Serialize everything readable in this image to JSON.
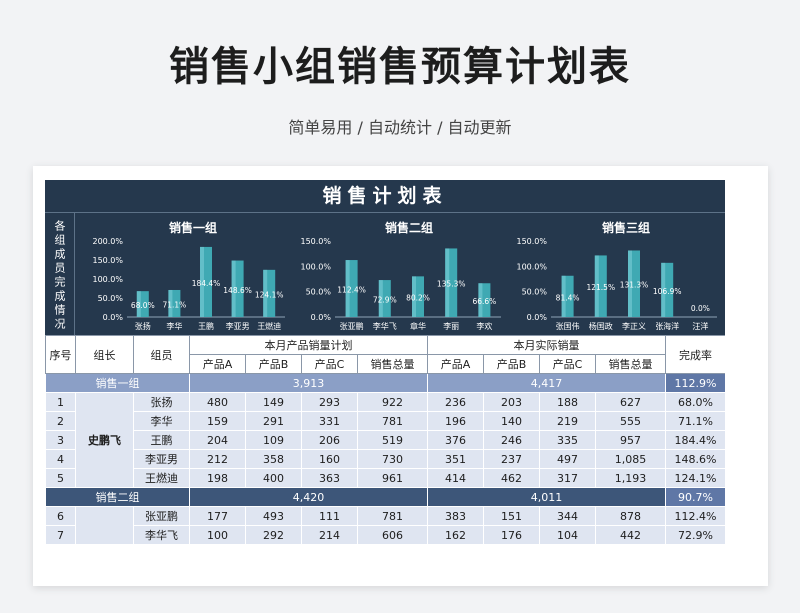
{
  "header": {
    "title": "销售小组销售预算计划表",
    "subtitle": "简单易用 / 自动统计 / 自动更新"
  },
  "sheet": {
    "title": "销售计划表",
    "side_label": "各组成员完成情况",
    "columns": {
      "index": "序号",
      "leader": "组长",
      "member": "组员",
      "plan_group": "本月产品销量计划",
      "actual_group": "本月实际销量",
      "rate": "完成率",
      "product_a": "产品A",
      "product_b": "产品B",
      "product_c": "产品C",
      "total": "销售总量"
    },
    "groups": [
      {
        "name": "销售一组",
        "leader": "史鹏飞",
        "plan_total": "3,913",
        "actual_total": "4,417",
        "rate": "112.9%",
        "rows": [
          {
            "idx": "1",
            "member": "张扬",
            "pa": "480",
            "pb": "149",
            "pc": "293",
            "pt": "922",
            "aa": "236",
            "ab": "203",
            "ac": "188",
            "at": "627",
            "rate": "68.0%"
          },
          {
            "idx": "2",
            "member": "李华",
            "pa": "159",
            "pb": "291",
            "pc": "331",
            "pt": "781",
            "aa": "196",
            "ab": "140",
            "ac": "219",
            "at": "555",
            "rate": "71.1%"
          },
          {
            "idx": "3",
            "member": "王鹏",
            "pa": "204",
            "pb": "109",
            "pc": "206",
            "pt": "519",
            "aa": "376",
            "ab": "246",
            "ac": "335",
            "at": "957",
            "rate": "184.4%"
          },
          {
            "idx": "4",
            "member": "李亚男",
            "pa": "212",
            "pb": "358",
            "pc": "160",
            "pt": "730",
            "aa": "351",
            "ab": "237",
            "ac": "497",
            "at": "1,085",
            "rate": "148.6%"
          },
          {
            "idx": "5",
            "member": "王燃迪",
            "pa": "198",
            "pb": "400",
            "pc": "363",
            "pt": "961",
            "aa": "414",
            "ab": "462",
            "ac": "317",
            "at": "1,193",
            "rate": "124.1%"
          }
        ]
      },
      {
        "name": "销售二组",
        "leader": "",
        "plan_total": "4,420",
        "actual_total": "4,011",
        "rate": "90.7%",
        "rows": [
          {
            "idx": "6",
            "member": "张亚鹏",
            "pa": "177",
            "pb": "493",
            "pc": "111",
            "pt": "781",
            "aa": "383",
            "ab": "151",
            "ac": "344",
            "at": "878",
            "rate": "112.4%"
          },
          {
            "idx": "7",
            "member": "李华飞",
            "pa": "100",
            "pb": "292",
            "pc": "214",
            "pt": "606",
            "aa": "162",
            "ab": "176",
            "ac": "104",
            "at": "442",
            "rate": "72.9%"
          }
        ]
      }
    ]
  },
  "chart_data": [
    {
      "type": "bar",
      "title": "销售一组",
      "categories": [
        "张扬",
        "李华",
        "王鹏",
        "李亚男",
        "王燃迪"
      ],
      "values": [
        68.0,
        71.1,
        184.4,
        148.6,
        124.1
      ],
      "value_labels": [
        "68.0%",
        "71.1%",
        "184.4%",
        "148.6%",
        "124.1%"
      ],
      "ylim": [
        0,
        200
      ],
      "yticks": [
        "200.0%",
        "150.0%",
        "100.0%",
        "50.0%",
        "0.0%"
      ],
      "color": "#3fa9b3"
    },
    {
      "type": "bar",
      "title": "销售二组",
      "categories": [
        "张亚鹏",
        "李华飞",
        "章华",
        "李丽",
        "李欢"
      ],
      "values": [
        112.4,
        72.9,
        80.2,
        135.3,
        66.6
      ],
      "value_labels": [
        "112.4%",
        "72.9%",
        "80.2%",
        "135.3%",
        "66.6%"
      ],
      "ylim": [
        0,
        150
      ],
      "yticks": [
        "150.0%",
        "100.0%",
        "50.0%",
        "0.0%"
      ],
      "color": "#3fa9b3"
    },
    {
      "type": "bar",
      "title": "销售三组",
      "categories": [
        "张国伟",
        "杨国政",
        "李正义",
        "张海洋",
        "汪洋"
      ],
      "values": [
        81.4,
        121.5,
        131.3,
        106.9,
        0.0
      ],
      "value_labels": [
        "81.4%",
        "121.5%",
        "131.3%",
        "106.9%",
        "0.0%"
      ],
      "ylim": [
        0,
        150
      ],
      "yticks": [
        "150.0%",
        "100.0%",
        "50.0%",
        "0.0%"
      ],
      "color": "#3fa9b3"
    }
  ]
}
